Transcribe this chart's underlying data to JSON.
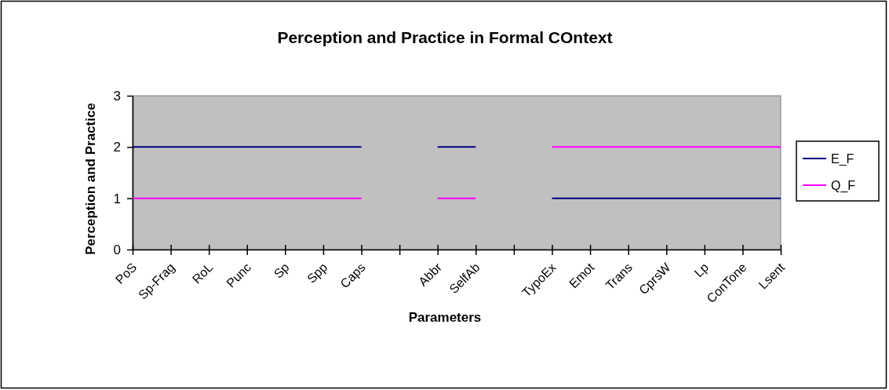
{
  "chart_data": {
    "type": "line",
    "title": "Perception and Practice in Formal COntext",
    "xlabel": "Parameters",
    "ylabel": "Perception and Practice",
    "categories": [
      "PoS",
      "Sp-Frag",
      "RoL",
      "Punc",
      "Sp",
      "Spp",
      "Caps",
      null,
      "Abbr",
      "SelfAb",
      null,
      "TypoEx",
      "Emot",
      "Trans",
      "CprsW",
      "Lp",
      "ConTone",
      "Lsent"
    ],
    "series": [
      {
        "name": "E_F",
        "color": "#000080",
        "values": [
          2,
          2,
          2,
          2,
          2,
          2,
          2,
          null,
          2,
          2,
          null,
          1,
          1,
          1,
          1,
          1,
          1,
          1
        ]
      },
      {
        "name": "Q_F",
        "color": "#ff00ff",
        "values": [
          1,
          1,
          1,
          1,
          1,
          1,
          1,
          null,
          1,
          1,
          null,
          2,
          2,
          2,
          2,
          2,
          2,
          2
        ]
      }
    ],
    "ylim": [
      0,
      3
    ],
    "yticks": [
      0,
      1,
      2,
      3
    ],
    "grid": false,
    "legend": "right",
    "marker": "none",
    "line_style": "solid"
  }
}
